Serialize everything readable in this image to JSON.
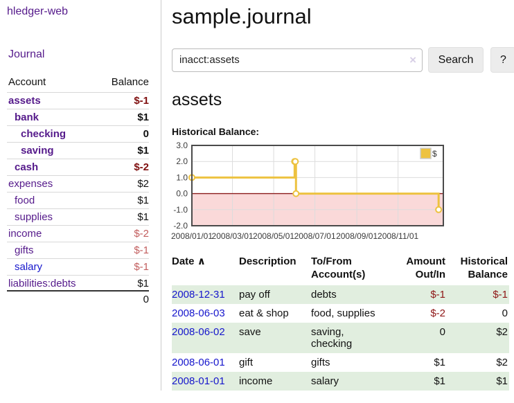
{
  "colors": {
    "link_purple": "#551a8b",
    "link_blue": "#1616cc",
    "neg_strong": "#7f0f0f",
    "neg_soft": "#c25e5e",
    "neg_table": "#8e1515",
    "row_green": "#e1eedf",
    "chart_line": "#edc240",
    "chart_negative_fill": "#fad9d9",
    "chart_zero_line": "#8b1a1a",
    "chart_grid": "#dcdcdc",
    "chart_border": "#4a4a4a"
  },
  "app": {
    "title": "hledger-web"
  },
  "sidebar": {
    "journal_link": "Journal",
    "accounts": {
      "header": {
        "account": "Account",
        "balance": "Balance"
      },
      "rows": [
        {
          "name": "assets",
          "depth": 1,
          "bold": true,
          "balance": "$-1",
          "neg": "strong",
          "link": "purple"
        },
        {
          "name": "bank",
          "depth": 2,
          "bold": true,
          "balance": "$1",
          "neg": null,
          "link": "purple"
        },
        {
          "name": "checking",
          "depth": 3,
          "bold": true,
          "balance": "0",
          "neg": null,
          "link": "purple"
        },
        {
          "name": "saving",
          "depth": 3,
          "bold": true,
          "balance": "$1",
          "neg": null,
          "link": "purple"
        },
        {
          "name": "cash",
          "depth": 2,
          "bold": true,
          "balance": "$-2",
          "neg": "strong",
          "link": "purple"
        },
        {
          "name": "expenses",
          "depth": 1,
          "bold": false,
          "balance": "$2",
          "neg": null,
          "link": "purple"
        },
        {
          "name": "food",
          "depth": 2,
          "bold": false,
          "balance": "$1",
          "neg": null,
          "link": "purple"
        },
        {
          "name": "supplies",
          "depth": 2,
          "bold": false,
          "balance": "$1",
          "neg": null,
          "link": "purple"
        },
        {
          "name": "income",
          "depth": 1,
          "bold": false,
          "balance": "$-2",
          "neg": "soft",
          "link": "purple"
        },
        {
          "name": "gifts",
          "depth": 2,
          "bold": false,
          "balance": "$-1",
          "neg": "soft",
          "link": "purple"
        },
        {
          "name": "salary",
          "depth": 2,
          "bold": false,
          "balance": "$-1",
          "neg": "soft",
          "link": "blue"
        },
        {
          "name": "liabilities:debts",
          "depth": 1,
          "bold": false,
          "balance": "$1",
          "neg": null,
          "link": "purple"
        }
      ],
      "total": "0"
    }
  },
  "main": {
    "title": "sample.journal",
    "search": {
      "value": "inacct:assets",
      "clear_icon": "×",
      "search_button": "Search",
      "help_button": "?"
    },
    "account_heading": "assets",
    "section_label": "Historical Balance:"
  },
  "chart_data": {
    "type": "line",
    "title": "Historical Balance:",
    "step": true,
    "series": [
      {
        "name": "$",
        "points": [
          [
            "2008-01-01",
            1
          ],
          [
            "2008-06-01",
            2
          ],
          [
            "2008-06-02",
            2
          ],
          [
            "2008-06-03",
            0
          ],
          [
            "2008-12-31",
            -1
          ]
        ]
      }
    ],
    "x_tick_labels": [
      "2008/01/01",
      "2008/03/01",
      "2008/05/01",
      "2008/07/01",
      "2008/09/01",
      "2008/11/01"
    ],
    "x_tick_dates": [
      "2008-01-01",
      "2008-03-01",
      "2008-05-01",
      "2008-07-01",
      "2008-09-01",
      "2008-11-01"
    ],
    "y_ticks": [
      3.0,
      2.0,
      1.0,
      0.0,
      -1.0,
      -2.0
    ],
    "ylim": [
      -2,
      3
    ],
    "xlim_dates": [
      "2008-01-01",
      "2009-01-07"
    ],
    "grid": true,
    "negative_region_below": 0,
    "legend_position": "top-right",
    "legend_label": "$"
  },
  "register": {
    "headers": {
      "date": "Date",
      "description": "Description",
      "accounts": "To/From Account(s)",
      "amount": "Amount Out/In",
      "balance": "Historical Balance"
    },
    "sort_icon": "∧",
    "rows": [
      {
        "date": "2008-12-31",
        "description": "pay off",
        "accounts": "debts",
        "amount": "$-1",
        "balance": "$-1",
        "amount_neg": true,
        "balance_neg": true
      },
      {
        "date": "2008-06-03",
        "description": "eat & shop",
        "accounts": "food, supplies",
        "amount": "$-2",
        "balance": "0",
        "amount_neg": true,
        "balance_neg": false
      },
      {
        "date": "2008-06-02",
        "description": "save",
        "accounts": "saving, checking",
        "amount": "0",
        "balance": "$2",
        "amount_neg": false,
        "balance_neg": false
      },
      {
        "date": "2008-06-01",
        "description": "gift",
        "accounts": "gifts",
        "amount": "$1",
        "balance": "$2",
        "amount_neg": false,
        "balance_neg": false
      },
      {
        "date": "2008-01-01",
        "description": "income",
        "accounts": "salary",
        "amount": "$1",
        "balance": "$1",
        "amount_neg": false,
        "balance_neg": false
      }
    ]
  }
}
